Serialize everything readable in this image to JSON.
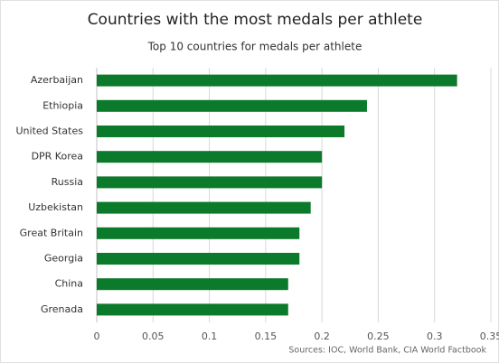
{
  "chart_data": {
    "type": "bar",
    "orientation": "horizontal",
    "title": "Countries with the most medals per athlete",
    "subtitle": "Top 10 countries for medals per athlete",
    "source": "Sources: IOC, World Bank, CIA World Factbook",
    "categories": [
      "Azerbaijan",
      "Ethiopia",
      "United States",
      "DPR Korea",
      "Russia",
      "Uzbekistan",
      "Great Britain",
      "Georgia",
      "China",
      "Grenada"
    ],
    "values": [
      0.32,
      0.24,
      0.22,
      0.2,
      0.2,
      0.19,
      0.18,
      0.18,
      0.17,
      0.17
    ],
    "color": "#0b7a2b",
    "xlim": [
      0,
      0.35
    ],
    "xticks": [
      0,
      0.05,
      0.1,
      0.15,
      0.2,
      0.25,
      0.3,
      0.35
    ],
    "grid": true
  }
}
